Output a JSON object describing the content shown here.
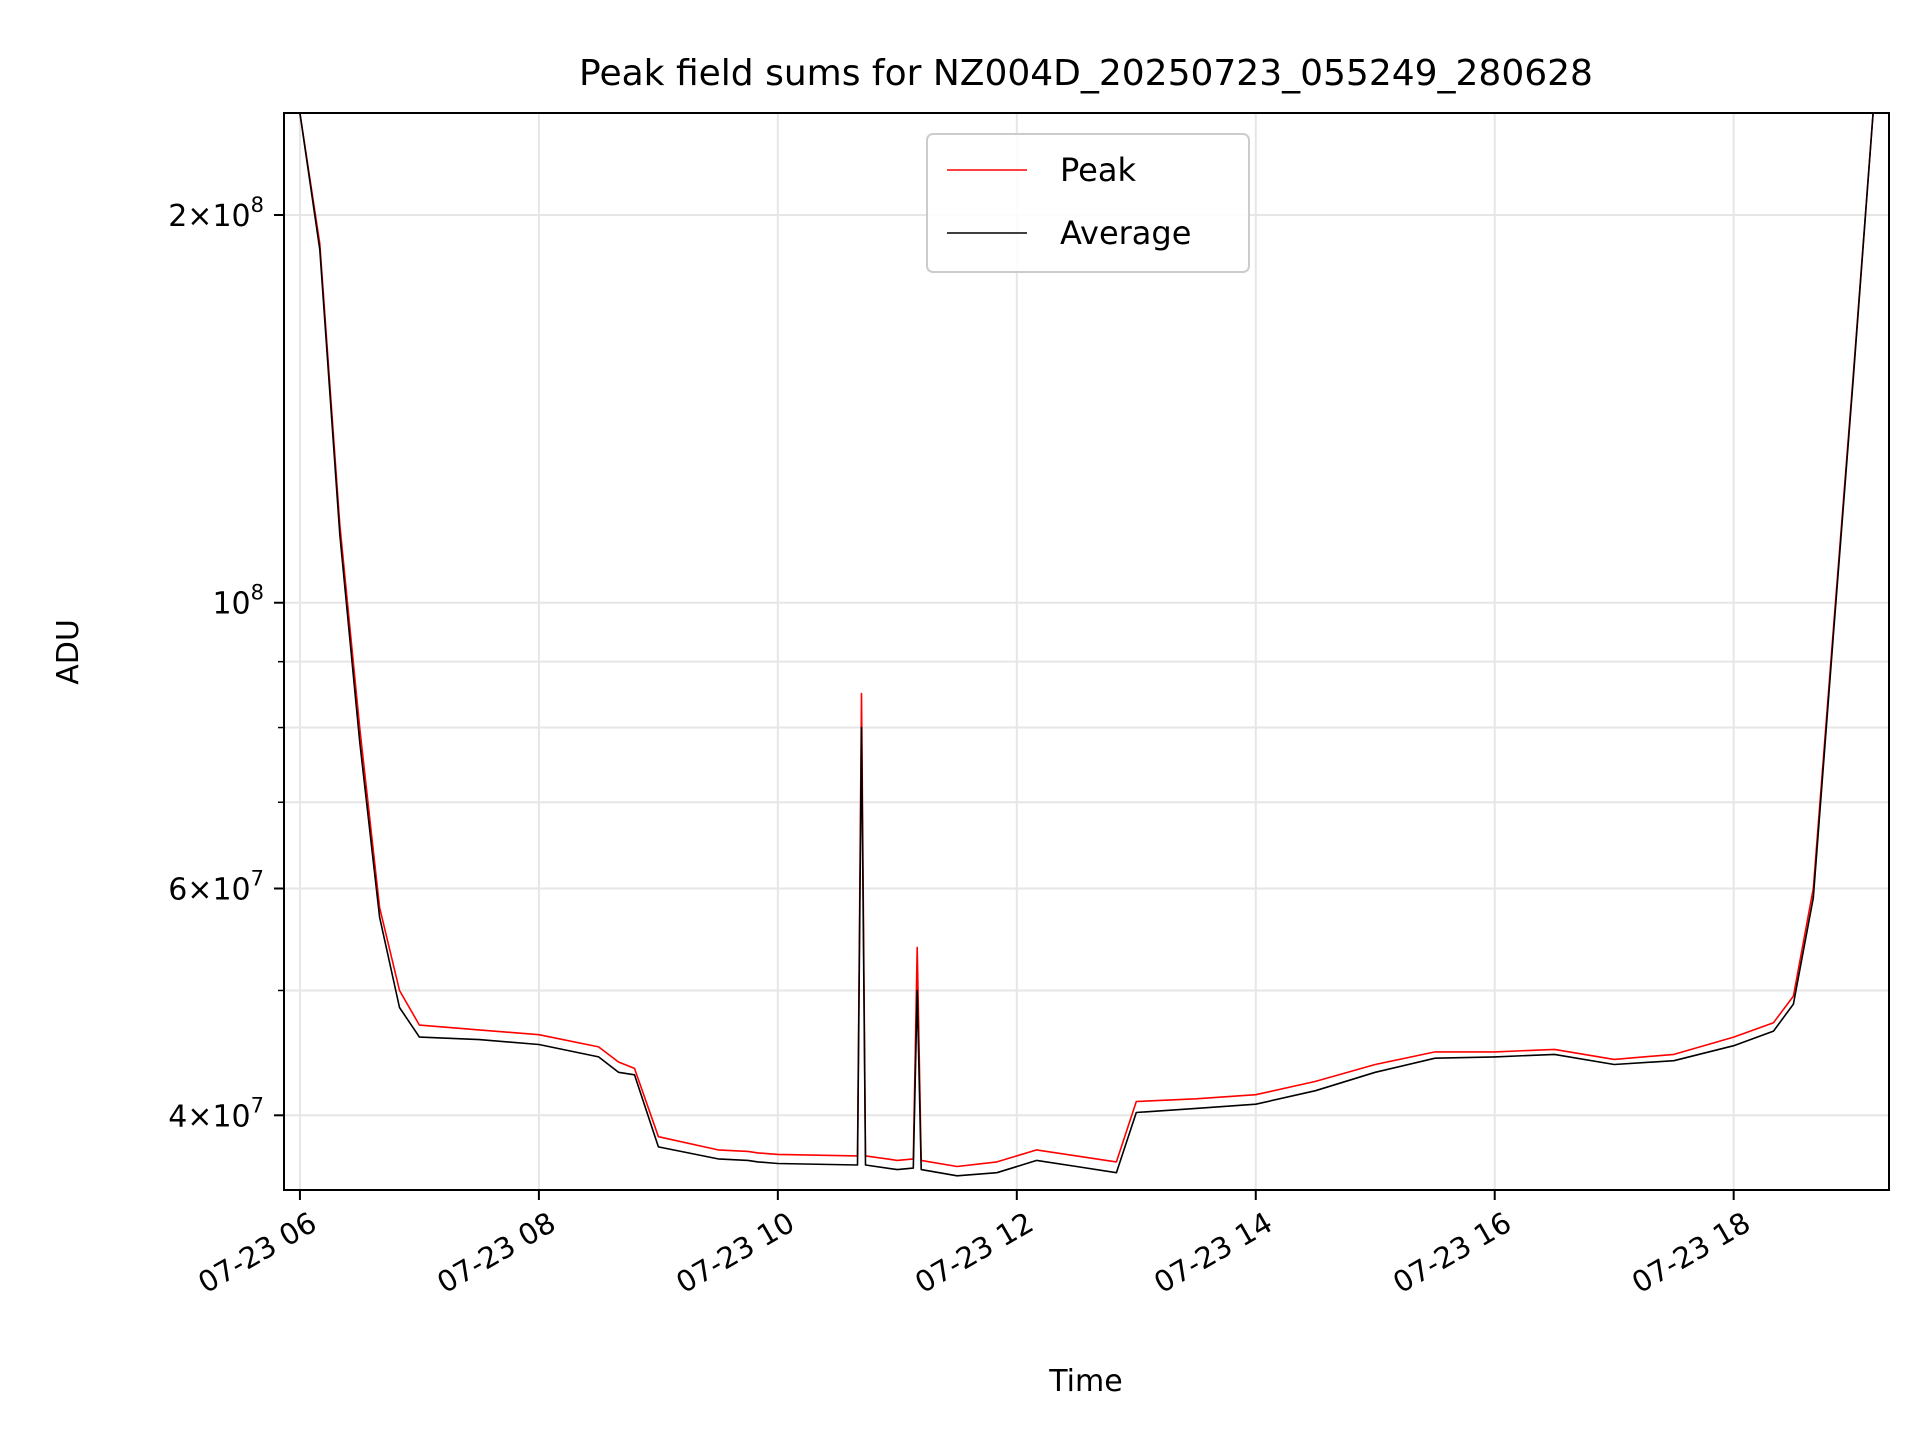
{
  "chart_data": {
    "type": "line",
    "title": "Peak field sums for NZ004D_20250723_055249_280628",
    "xlabel": "Time",
    "ylabel": "ADU",
    "y_scale": "log",
    "ylim": [
      35000000,
      240000000
    ],
    "xlim": [
      "2025-07-23 05:52",
      "2025-07-23 19:18"
    ],
    "grid": true,
    "legend_position": "top-center",
    "x_ticks": [
      {
        "value": "2025-07-23 06:00",
        "label": "07-23 06"
      },
      {
        "value": "2025-07-23 08:00",
        "label": "07-23 08"
      },
      {
        "value": "2025-07-23 10:00",
        "label": "07-23 10"
      },
      {
        "value": "2025-07-23 12:00",
        "label": "07-23 12"
      },
      {
        "value": "2025-07-23 14:00",
        "label": "07-23 14"
      },
      {
        "value": "2025-07-23 16:00",
        "label": "07-23 16"
      },
      {
        "value": "2025-07-23 18:00",
        "label": "07-23 18"
      }
    ],
    "y_ticks": [
      {
        "value": 40000000,
        "base": "4",
        "exp": "7"
      },
      {
        "value": 60000000,
        "base": "6",
        "exp": "7"
      },
      {
        "value": 100000000,
        "base": "",
        "exp": "8"
      },
      {
        "value": 200000000,
        "base": "2",
        "exp": "8"
      }
    ],
    "y_minor_ticks": [
      50000000,
      70000000,
      80000000,
      90000000
    ],
    "series": [
      {
        "name": "Peak",
        "color": "#ff0000",
        "x": [
          "2025-07-23 05:52",
          "2025-07-23 06:00",
          "2025-07-23 06:10",
          "2025-07-23 06:20",
          "2025-07-23 06:30",
          "2025-07-23 06:40",
          "2025-07-23 06:50",
          "2025-07-23 07:00",
          "2025-07-23 07:30",
          "2025-07-23 08:00",
          "2025-07-23 08:30",
          "2025-07-23 08:40",
          "2025-07-23 08:48",
          "2025-07-23 09:00",
          "2025-07-23 09:30",
          "2025-07-23 09:45",
          "2025-07-23 09:50",
          "2025-07-23 10:00",
          "2025-07-23 10:40",
          "2025-07-23 10:42",
          "2025-07-23 10:44",
          "2025-07-23 11:00",
          "2025-07-23 11:08",
          "2025-07-23 11:10",
          "2025-07-23 11:12",
          "2025-07-23 11:30",
          "2025-07-23 11:50",
          "2025-07-23 12:10",
          "2025-07-23 12:30",
          "2025-07-23 12:50",
          "2025-07-23 13:00",
          "2025-07-23 13:30",
          "2025-07-23 14:00",
          "2025-07-23 14:30",
          "2025-07-23 15:00",
          "2025-07-23 15:30",
          "2025-07-23 16:00",
          "2025-07-23 16:30",
          "2025-07-23 17:00",
          "2025-07-23 17:30",
          "2025-07-23 18:00",
          "2025-07-23 18:20",
          "2025-07-23 18:30",
          "2025-07-23 18:40",
          "2025-07-23 18:50",
          "2025-07-23 19:00",
          "2025-07-23 19:10",
          "2025-07-23 19:18"
        ],
        "values": [
          240000000,
          240000000,
          190000000,
          115000000,
          80000000,
          58000000,
          50000000,
          47000000,
          46600000,
          46200000,
          45200000,
          44000000,
          43500000,
          38500000,
          37600000,
          37500000,
          37400000,
          37300000,
          37200000,
          85000000,
          37200000,
          36900000,
          37000000,
          54000000,
          36900000,
          36500000,
          36800000,
          37600000,
          37200000,
          36800000,
          41000000,
          41200000,
          41500000,
          42500000,
          43800000,
          44800000,
          44800000,
          45000000,
          44200000,
          44600000,
          46000000,
          47200000,
          49500000,
          60000000,
          95000000,
          150000000,
          240000000,
          240000000
        ]
      },
      {
        "name": "Average",
        "color": "#000000",
        "x": [
          "2025-07-23 05:52",
          "2025-07-23 06:00",
          "2025-07-23 06:10",
          "2025-07-23 06:20",
          "2025-07-23 06:30",
          "2025-07-23 06:40",
          "2025-07-23 06:50",
          "2025-07-23 07:00",
          "2025-07-23 07:30",
          "2025-07-23 08:00",
          "2025-07-23 08:30",
          "2025-07-23 08:40",
          "2025-07-23 08:48",
          "2025-07-23 09:00",
          "2025-07-23 09:30",
          "2025-07-23 09:45",
          "2025-07-23 09:50",
          "2025-07-23 10:00",
          "2025-07-23 10:40",
          "2025-07-23 10:42",
          "2025-07-23 10:44",
          "2025-07-23 11:00",
          "2025-07-23 11:08",
          "2025-07-23 11:10",
          "2025-07-23 11:12",
          "2025-07-23 11:30",
          "2025-07-23 11:50",
          "2025-07-23 12:10",
          "2025-07-23 12:30",
          "2025-07-23 12:50",
          "2025-07-23 13:00",
          "2025-07-23 13:30",
          "2025-07-23 14:00",
          "2025-07-23 14:30",
          "2025-07-23 15:00",
          "2025-07-23 15:30",
          "2025-07-23 16:00",
          "2025-07-23 16:30",
          "2025-07-23 17:00",
          "2025-07-23 17:30",
          "2025-07-23 18:00",
          "2025-07-23 18:20",
          "2025-07-23 18:30",
          "2025-07-23 18:40",
          "2025-07-23 18:50",
          "2025-07-23 19:00",
          "2025-07-23 19:10",
          "2025-07-23 19:18"
        ],
        "values": [
          240000000,
          240000000,
          188000000,
          113000000,
          78000000,
          57000000,
          48500000,
          46000000,
          45800000,
          45400000,
          44400000,
          43200000,
          43000000,
          37800000,
          37000000,
          36900000,
          36800000,
          36700000,
          36600000,
          80000000,
          36600000,
          36300000,
          36400000,
          50000000,
          36300000,
          35900000,
          36100000,
          36900000,
          36500000,
          36100000,
          40200000,
          40500000,
          40800000,
          41800000,
          43200000,
          44300000,
          44400000,
          44600000,
          43800000,
          44100000,
          45300000,
          46500000,
          48800000,
          59000000,
          94000000,
          149000000,
          240000000,
          240000000
        ]
      }
    ]
  }
}
